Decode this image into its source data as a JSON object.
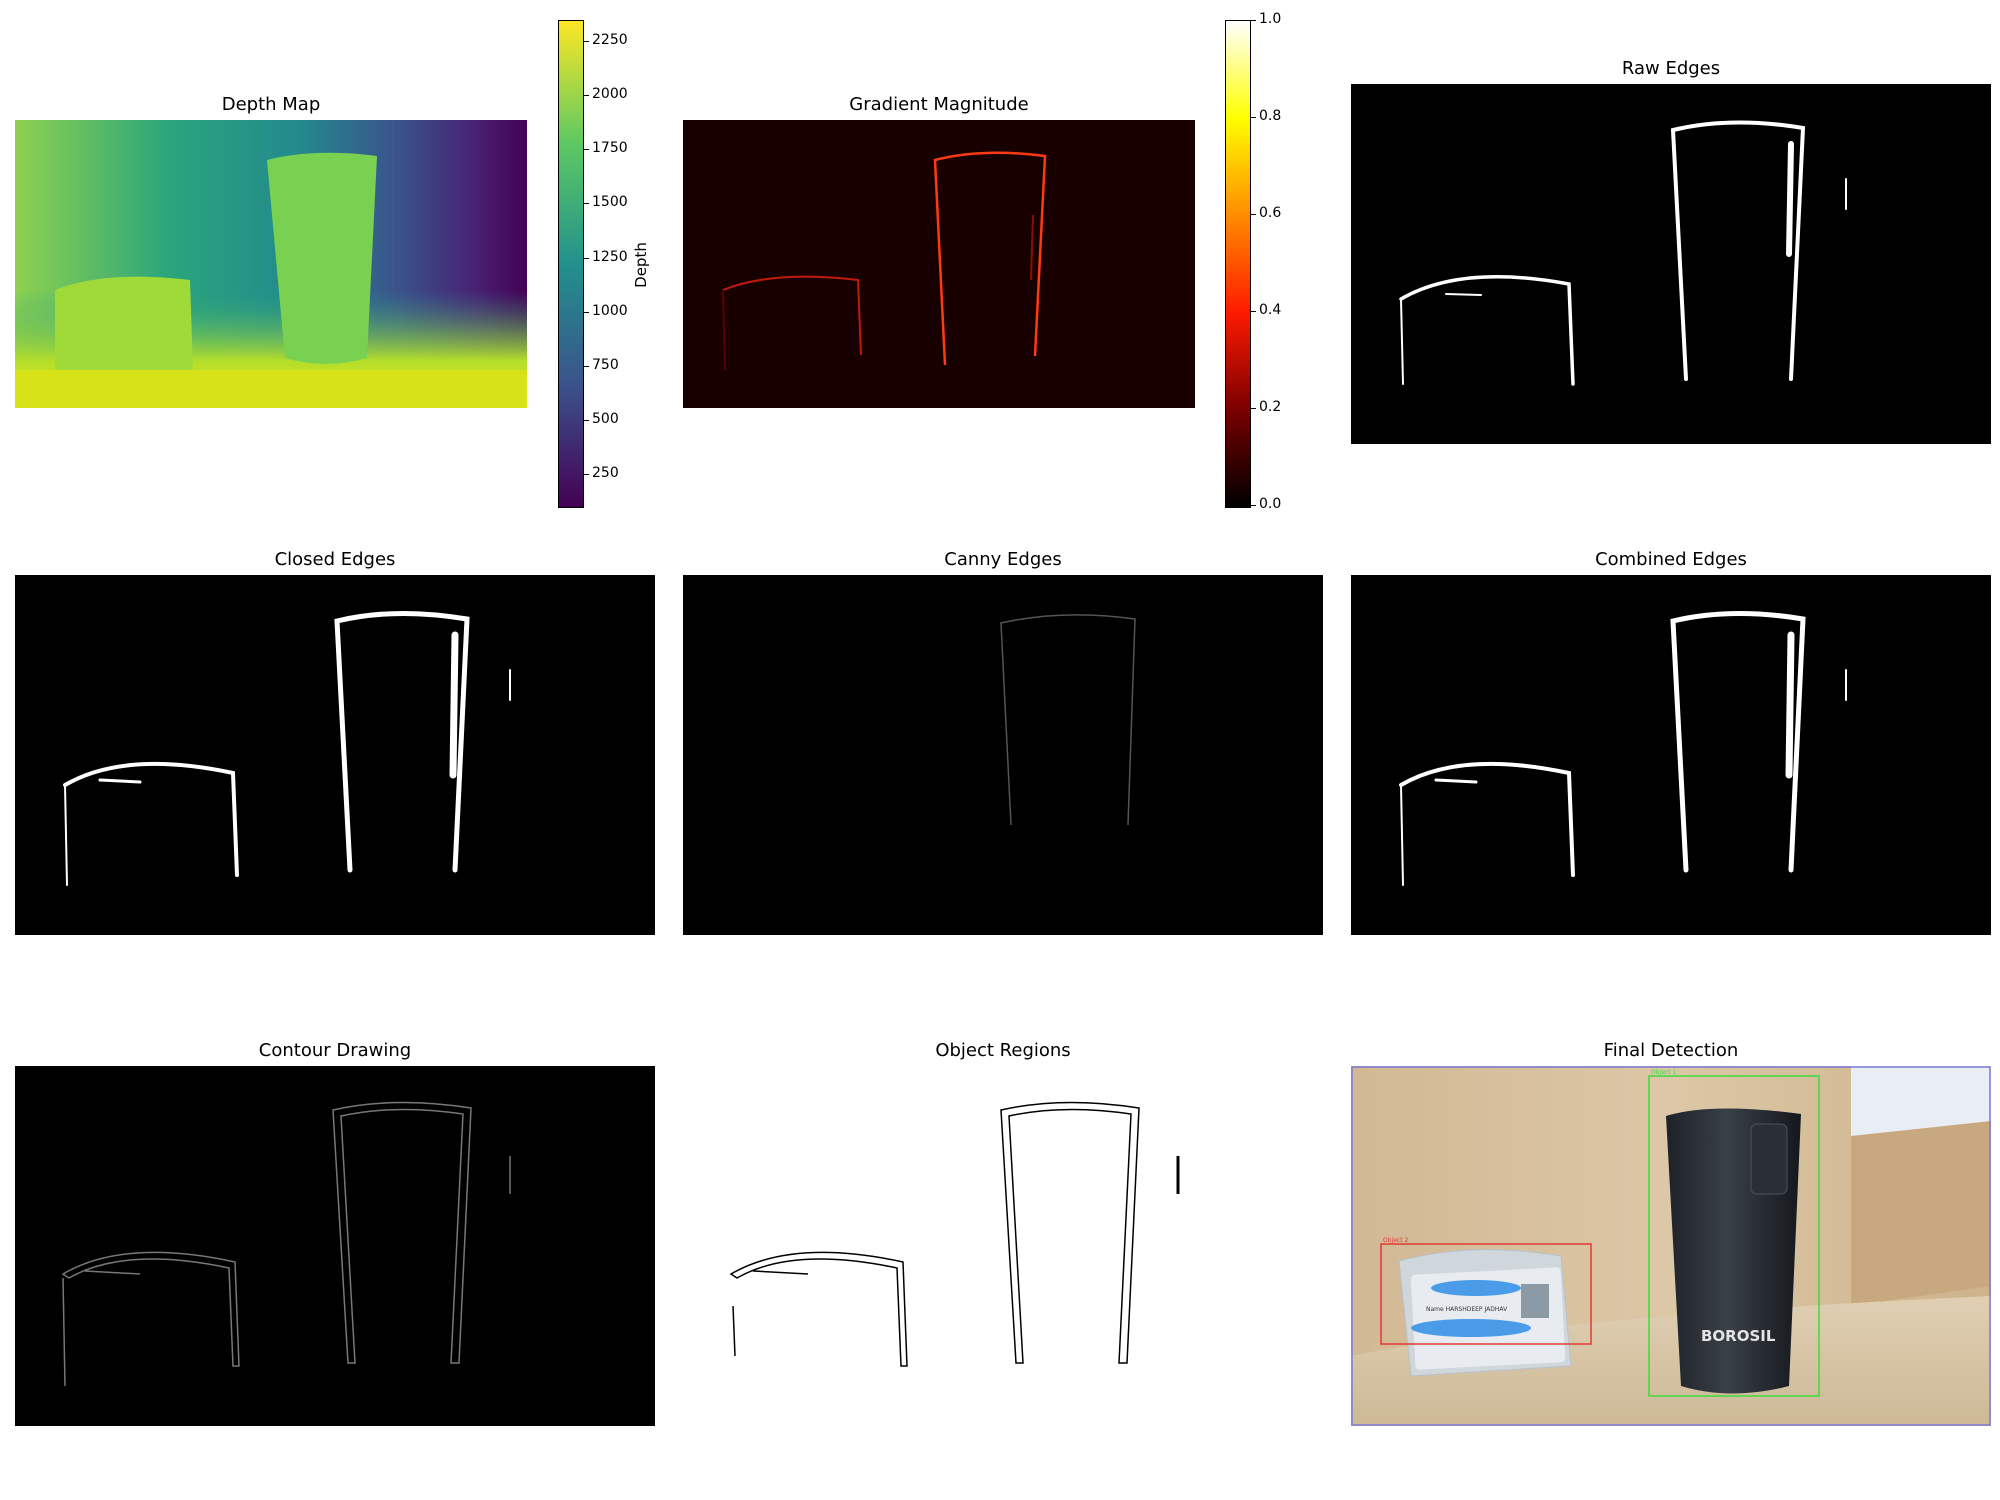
{
  "panels": {
    "depth_map": {
      "title": "Depth Map"
    },
    "gradient": {
      "title": "Gradient Magnitude"
    },
    "raw_edges": {
      "title": "Raw Edges"
    },
    "closed_edges": {
      "title": "Closed Edges"
    },
    "canny_edges": {
      "title": "Canny Edges"
    },
    "combined_edges": {
      "title": "Combined Edges"
    },
    "contour_drawing": {
      "title": "Contour Drawing"
    },
    "object_regions": {
      "title": "Object Regions"
    },
    "final_detection": {
      "title": "Final Detection",
      "box1_label": "Object 1",
      "box2_label": "Object 2",
      "card_name": "Name  HARSHDEEP JADHAV",
      "brand": "BOROSIL",
      "box1_color": "#3ddc3d",
      "box2_color": "#e53935",
      "frame_color": "#7b7bd8"
    }
  },
  "depth_colorbar": {
    "label": "Depth",
    "ticks": [
      "2250",
      "2000",
      "1750",
      "1500",
      "1250",
      "1000",
      "750",
      "500",
      "250"
    ]
  },
  "gradient_colorbar": {
    "ticks": [
      "1.0",
      "0.8",
      "0.6",
      "0.4",
      "0.2",
      "0.0"
    ]
  }
}
